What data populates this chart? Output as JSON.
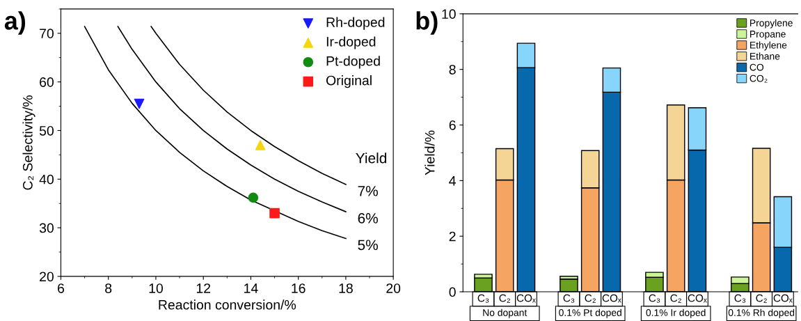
{
  "chart_data": [
    {
      "type": "scatter",
      "xlabel": "Reaction conversion/%",
      "ylabel": "C₂ Selectivity/%",
      "xlim": [
        6,
        20
      ],
      "ylim": [
        20,
        75
      ],
      "xticks": [
        6,
        8,
        10,
        12,
        14,
        16,
        18,
        20
      ],
      "yticks": [
        20,
        30,
        40,
        50,
        60,
        70
      ],
      "legend": "top right",
      "grid": false,
      "annotations": [
        "a)",
        "Yield"
      ],
      "series": [
        {
          "name": "Rh-doped",
          "color": "#1a1aff",
          "marker": "triangle-down",
          "x": [
            9.3
          ],
          "values": [
            55.5
          ]
        },
        {
          "name": "Ir-doped",
          "color": "#f5d60f",
          "marker": "triangle",
          "x": [
            14.4
          ],
          "values": [
            47
          ]
        },
        {
          "name": "Pt-doped",
          "color": "#118c11",
          "marker": "circle",
          "x": [
            14.1
          ],
          "values": [
            36.2
          ]
        },
        {
          "name": "Original",
          "color": "#ff1a1a",
          "marker": "square",
          "x": [
            15.0
          ],
          "values": [
            33.0
          ]
        },
        {
          "name": "7%",
          "type": "line",
          "color": "#000000",
          "marker": "none",
          "x": [
            9.8,
            10,
            11,
            12,
            13,
            14,
            15,
            16,
            17,
            18
          ],
          "values": [
            71.4,
            70,
            63.6,
            58.3,
            53.8,
            50,
            46.7,
            43.8,
            41.2,
            38.9
          ]
        },
        {
          "name": "6%",
          "type": "line",
          "color": "#000000",
          "marker": "none",
          "x": [
            8.4,
            9,
            10,
            11,
            12,
            13,
            14,
            15,
            16,
            17,
            18
          ],
          "values": [
            71.4,
            66.7,
            60,
            54.5,
            50,
            46.2,
            42.9,
            40,
            37.5,
            35.3,
            33.3
          ]
        },
        {
          "name": "5%",
          "type": "line",
          "color": "#000000",
          "marker": "none",
          "x": [
            7,
            8,
            9,
            10,
            11,
            12,
            13,
            14,
            16,
            17,
            18
          ],
          "values": [
            71.4,
            62.5,
            55.6,
            50,
            45.5,
            41.7,
            38.5,
            35.7,
            31.3,
            29.4,
            27.8
          ]
        }
      ]
    },
    {
      "type": "bar",
      "stacked": true,
      "ylabel": "Yield/%",
      "ylim": [
        0,
        10
      ],
      "yticks": [
        0,
        2,
        4,
        6,
        8,
        10
      ],
      "legend": "top right",
      "grid": false,
      "tick_labels": "y",
      "annotations": [
        "b)",
        "No dopant",
        "0.1% Pt doped",
        "0.1% Ir doped",
        "0.1% Rh doped"
      ],
      "categories": [
        "C₃",
        "C₂",
        "COₓ",
        null,
        "C₃",
        "C₂",
        "COₓ",
        null,
        "C₃",
        "C₂",
        "COₓ",
        null,
        "C₃",
        "C₂",
        "COₓ"
      ],
      "series": [
        {
          "name": "Propylene",
          "color": "#6aa121",
          "values": [
            0.5,
            null,
            null,
            null,
            0.46,
            null,
            null,
            null,
            0.52,
            null,
            null,
            null,
            0.3,
            null,
            null
          ]
        },
        {
          "name": "Propane",
          "color": "#ccf59a",
          "values": [
            0.13,
            null,
            null,
            null,
            0.1,
            null,
            null,
            null,
            0.18,
            null,
            null,
            null,
            0.23,
            null,
            null
          ]
        },
        {
          "name": "Ethylene",
          "color": "#f5a462",
          "values": [
            null,
            4.02,
            null,
            null,
            null,
            3.74,
            null,
            null,
            null,
            4.02,
            null,
            null,
            null,
            2.48,
            null
          ]
        },
        {
          "name": "Ethane",
          "color": "#f5d595",
          "values": [
            null,
            1.13,
            null,
            null,
            null,
            1.34,
            null,
            null,
            null,
            2.7,
            null,
            null,
            null,
            2.68,
            null
          ]
        },
        {
          "name": "CO",
          "color": "#0868ac",
          "values": [
            null,
            null,
            8.06,
            null,
            null,
            null,
            7.18,
            null,
            null,
            null,
            5.1,
            null,
            null,
            null,
            1.6
          ]
        },
        {
          "name": "CO₂",
          "color": "#87d5fa",
          "values": [
            null,
            null,
            0.88,
            null,
            null,
            null,
            0.87,
            null,
            null,
            null,
            1.52,
            null,
            null,
            null,
            1.82
          ]
        }
      ]
    }
  ]
}
